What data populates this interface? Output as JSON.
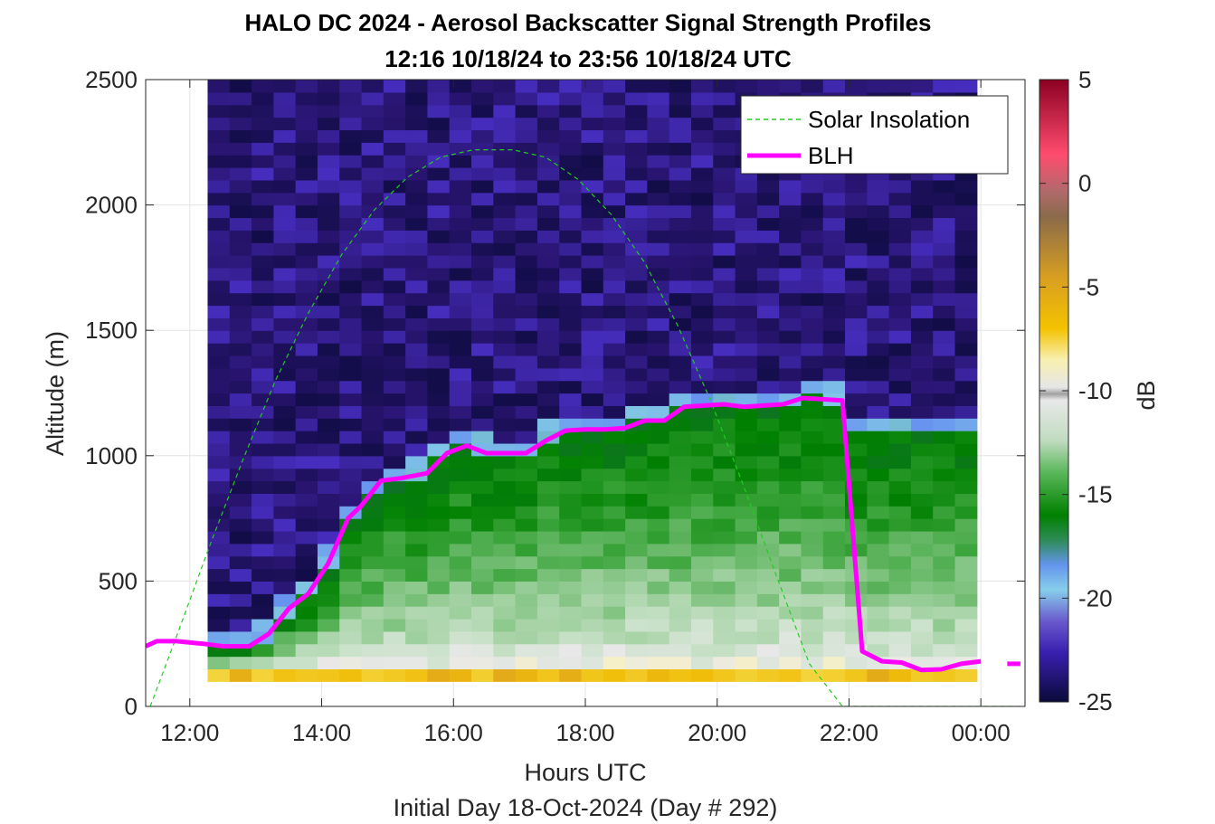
{
  "chart_data": {
    "type": "heatmap",
    "title": "HALO DC 2024 - Aerosol Backscatter Signal Strength Profiles",
    "subtitle": "12:16 10/18/24 to 23:56 10/18/24  UTC",
    "xlabel": "Hours UTC",
    "xlabel2": "Initial Day 18-Oct-2024 (Day # 292)",
    "ylabel": "Altitude (m)",
    "colorbar_label": "dB",
    "xlim": [
      11.33,
      24.67
    ],
    "ylim": [
      0,
      2500
    ],
    "clim": [
      -25,
      5
    ],
    "x_ticks": [
      12,
      14,
      16,
      18,
      20,
      22,
      24
    ],
    "x_tick_labels": [
      "12:00",
      "14:00",
      "16:00",
      "18:00",
      "20:00",
      "22:00",
      "00:00"
    ],
    "y_ticks": [
      0,
      500,
      1000,
      1500,
      2000,
      2500
    ],
    "y_tick_labels": [
      "0",
      "500",
      "1000",
      "1500",
      "2000",
      "2500"
    ],
    "colorbar_ticks": [
      5,
      0,
      -5,
      -10,
      -15,
      -20,
      -25
    ],
    "colorbar_tick_labels": [
      "5",
      "0",
      "-5",
      "-10",
      "-15",
      "-20",
      "-25"
    ],
    "grid": true,
    "legend_position": "top-right",
    "heatmap": {
      "x_start": 12.27,
      "x_end": 23.94,
      "y_start": 100,
      "y_end": 2500,
      "layers_note": "per-time-bin signal in dB; derived from BLH profile (surface -7 dB, mixed layer -16 dB, free troposphere -23 dB)"
    },
    "series": [
      {
        "name": "Solar Insolation",
        "style": "dashed",
        "color": "#22cc22",
        "x": [
          11.4,
          11.8,
          12.3,
          12.8,
          13.3,
          13.8,
          14.3,
          14.8,
          15.3,
          15.8,
          16.3,
          16.9,
          17.4,
          17.9,
          18.4,
          18.9,
          19.4,
          19.9,
          20.4,
          20.9,
          21.4,
          21.9,
          22.4,
          23.0,
          23.5,
          24.0,
          24.6
        ],
        "y": [
          0,
          280,
          640,
          980,
          1300,
          1570,
          1800,
          1980,
          2110,
          2190,
          2220,
          2220,
          2190,
          2100,
          1960,
          1770,
          1520,
          1220,
          880,
          520,
          170,
          0,
          0,
          0,
          0,
          0,
          0
        ]
      },
      {
        "name": "BLH",
        "style": "solid",
        "color": "#ff00ff",
        "x": [
          11.33,
          11.5,
          11.8,
          12.2,
          12.5,
          12.9,
          13.2,
          13.5,
          13.8,
          14.1,
          14.4,
          14.6,
          14.9,
          15.2,
          15.6,
          15.9,
          16.2,
          16.5,
          16.8,
          17.1,
          17.4,
          17.7,
          18.0,
          18.3,
          18.6,
          18.9,
          19.2,
          19.5,
          19.8,
          20.1,
          20.4,
          20.7,
          21.0,
          21.3,
          21.6,
          21.9,
          22.2,
          22.5,
          22.8,
          23.1,
          23.4,
          23.7,
          24.0
        ],
        "y": [
          240,
          260,
          260,
          250,
          240,
          240,
          290,
          390,
          450,
          570,
          750,
          800,
          900,
          910,
          930,
          1010,
          1040,
          1010,
          1010,
          1010,
          1060,
          1100,
          1105,
          1105,
          1110,
          1140,
          1140,
          1195,
          1200,
          1205,
          1195,
          1200,
          1205,
          1230,
          1225,
          1220,
          220,
          180,
          175,
          145,
          148,
          170,
          180
        ],
        "extra_segment": {
          "x": [
            24.4,
            24.6
          ],
          "y": [
            170,
            170
          ]
        }
      }
    ]
  }
}
